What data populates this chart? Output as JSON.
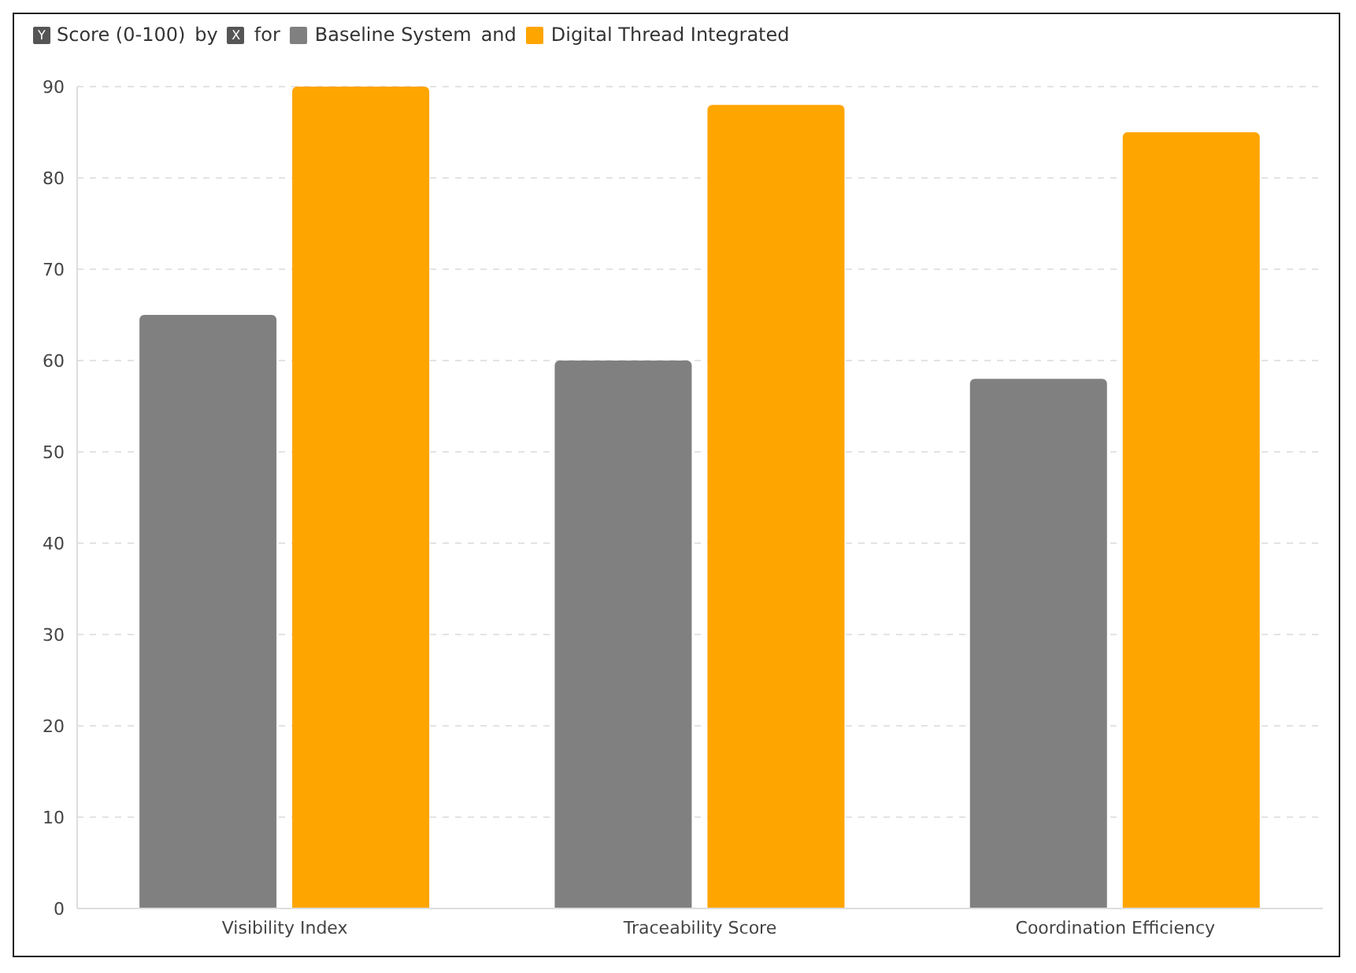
{
  "chart_data": {
    "type": "bar",
    "ylabel": "Score (0-100)",
    "annotations": [
      "Y",
      "by",
      "X",
      "for",
      "and"
    ],
    "categories": [
      "Visibility Index",
      "Traceability Score",
      "Coordination Efficiency"
    ],
    "series": [
      {
        "name": "Baseline System",
        "color": "#808080",
        "values": [
          65,
          60,
          58
        ]
      },
      {
        "name": "Digital Thread Integrated",
        "color": "#ffa500",
        "values": [
          90,
          88,
          85
        ]
      }
    ],
    "ylim": [
      0,
      90
    ],
    "yticks": [
      0,
      10,
      20,
      30,
      40,
      50,
      60,
      70,
      80,
      90
    ],
    "grid": "y",
    "legend": "top left"
  }
}
